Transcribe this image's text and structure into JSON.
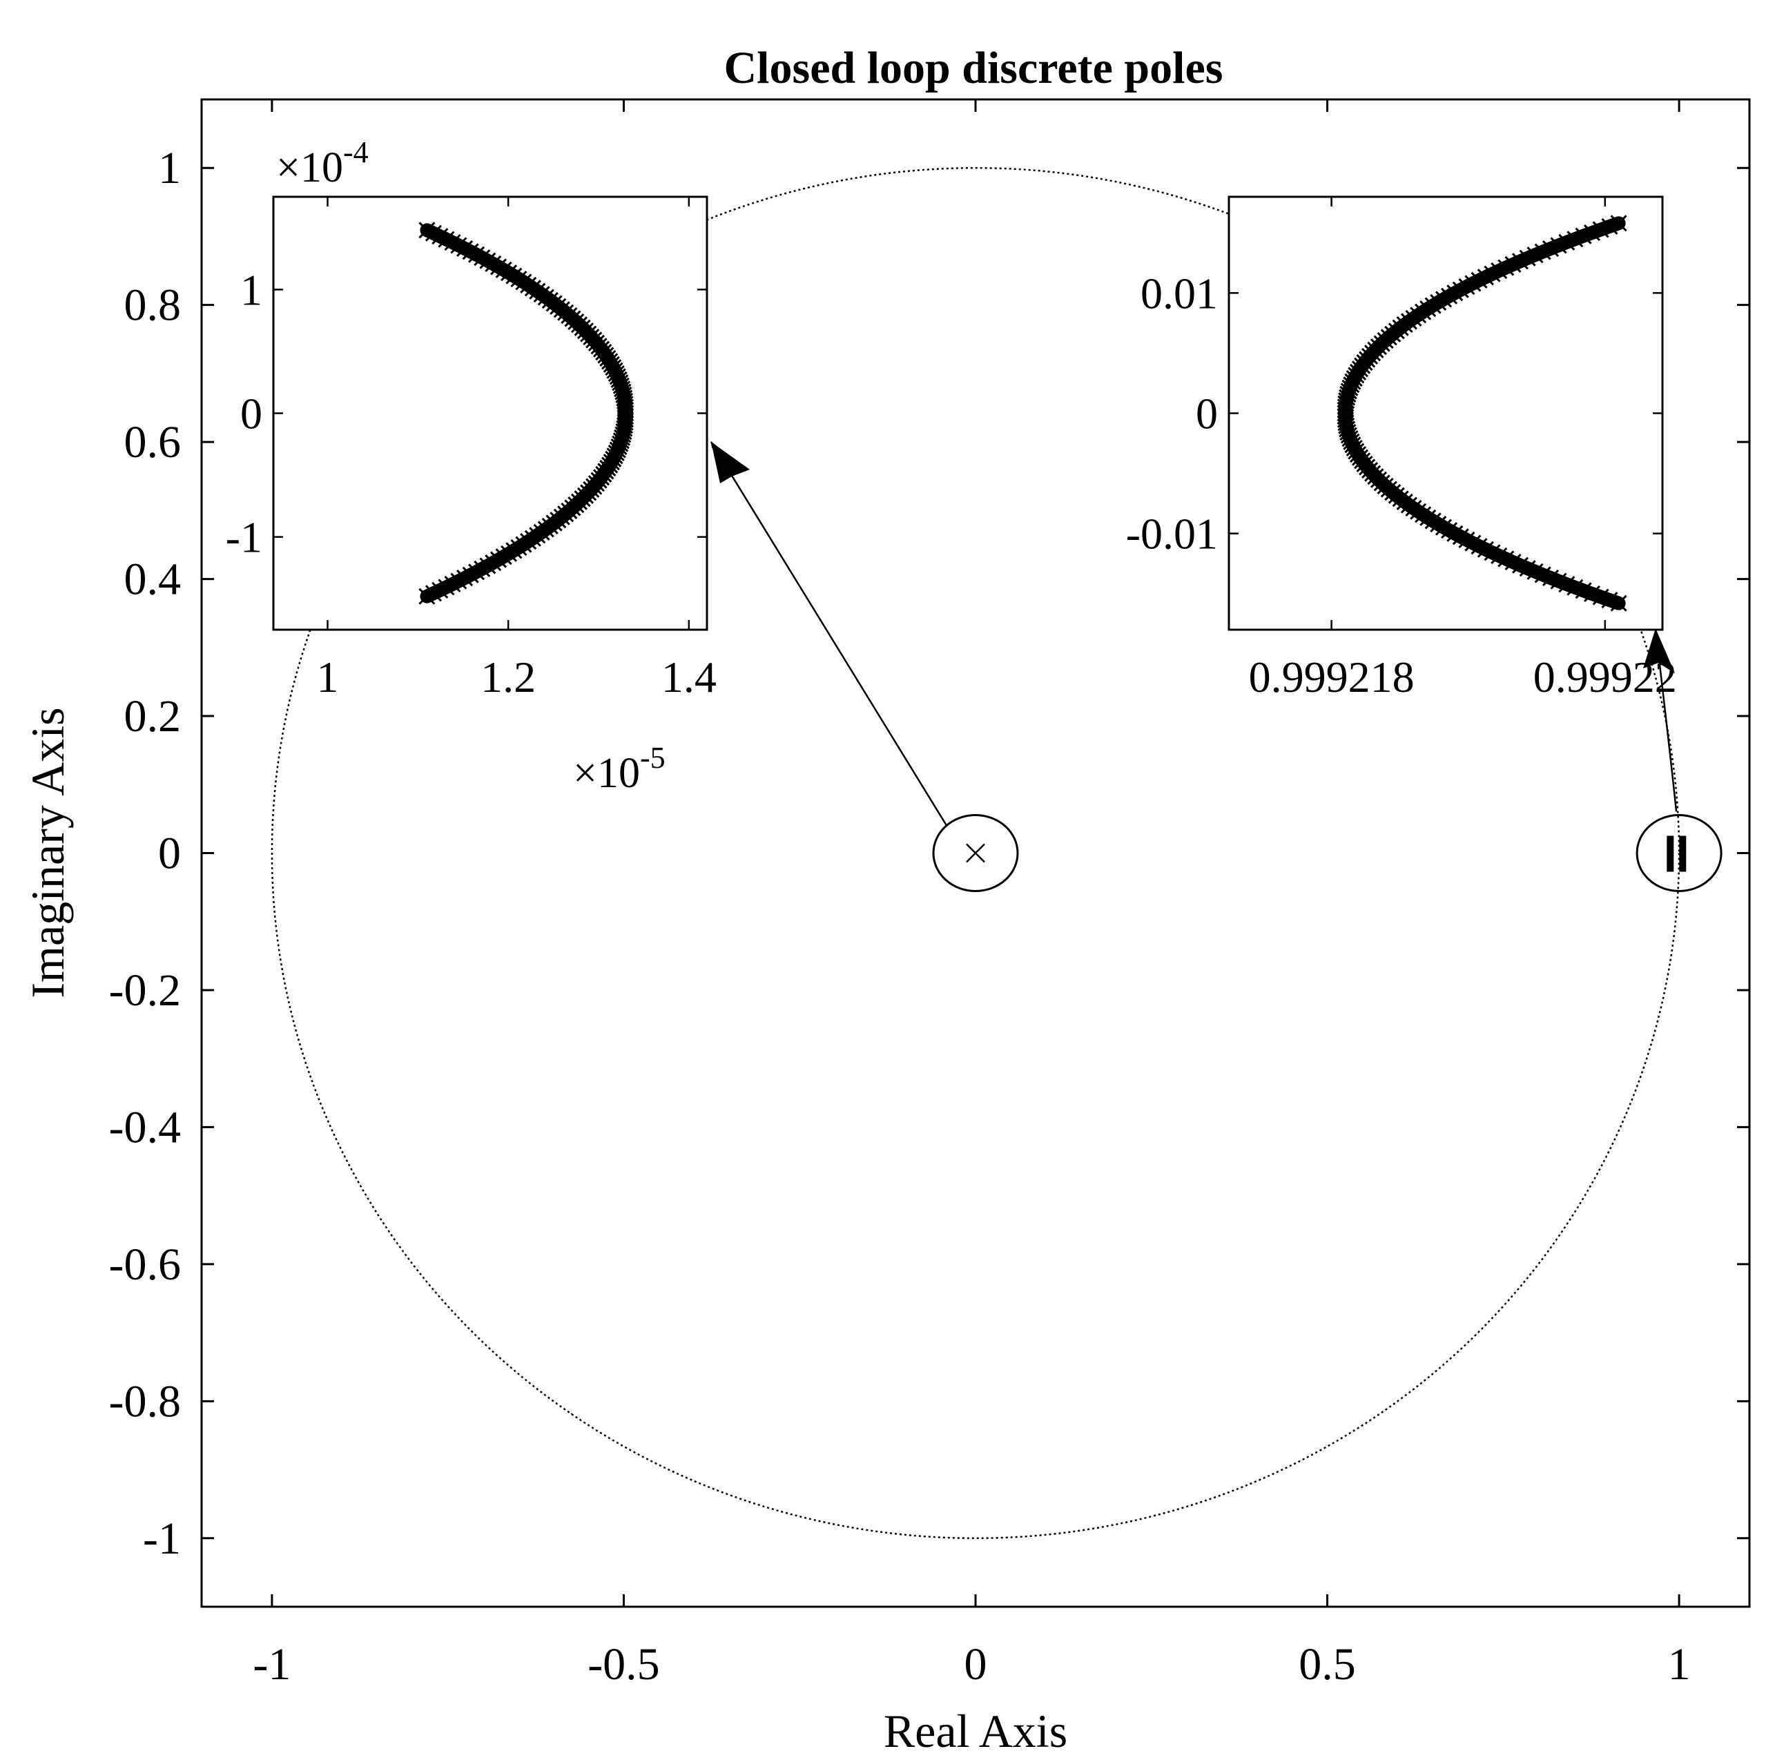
{
  "chart_data": [
    {
      "id": "main",
      "type": "scatter",
      "title": "Closed loop discrete poles",
      "xlabel": "Real Axis",
      "ylabel": "Imaginary Axis",
      "xlim": [
        -1.1,
        1.1
      ],
      "ylim": [
        -1.1,
        1.1
      ],
      "xticks": [
        -1,
        -0.5,
        0,
        0.5,
        1
      ],
      "xtick_labels": [
        "-1",
        "-0.5",
        "0",
        "0.5",
        "1"
      ],
      "yticks": [
        1,
        0.8,
        0.6,
        0.4,
        0.2,
        0,
        -0.2,
        -0.4,
        -0.6,
        -0.8,
        -1
      ],
      "ytick_labels": [
        "1",
        "0.8",
        "0.6",
        "0.4",
        "0.2",
        "0",
        "-0.2",
        "-0.4",
        "-0.6",
        "-0.8",
        "-1"
      ],
      "grid": false,
      "unit_circle": {
        "center": [
          0,
          0
        ],
        "radius": 1,
        "style": "dotted"
      },
      "pole_clusters": [
        {
          "name": "",
          "x": 0,
          "y": 0,
          "marker": "x"
        },
        {
          "name": "",
          "x": 0.99922,
          "y": 0,
          "marker": "x"
        }
      ],
      "highlight_ellipses": [
        {
          "center": [
            0,
            0
          ]
        },
        {
          "center": [
            1,
            0
          ]
        }
      ]
    },
    {
      "id": "inset-left",
      "type": "scatter",
      "xlim": [
        0.94,
        1.42
      ],
      "ylim": [
        -1.75,
        1.75
      ],
      "xticks": [
        1,
        1.2,
        1.4
      ],
      "xtick_labels": [
        "1",
        "1.2",
        "1.4"
      ],
      "x_multiplier": "×10",
      "x_exponent": "-5",
      "yticks": [
        1,
        0,
        -1
      ],
      "ytick_labels": [
        "1",
        "0",
        "-1"
      ],
      "y_multiplier": "×10",
      "y_exponent": "-4",
      "curve": {
        "vertex": [
          1.33,
          0
        ],
        "end_top": [
          1.11,
          1.48
        ],
        "end_bottom": [
          1.11,
          -1.48
        ],
        "marker": "x"
      },
      "annotation_arrow": {
        "from": [
          0,
          0
        ],
        "to_edge": "right"
      }
    },
    {
      "id": "inset-right",
      "type": "scatter",
      "xlim": [
        0.99921725,
        0.99922042
      ],
      "ylim": [
        -0.018,
        0.018
      ],
      "xticks": [
        0.999218,
        0.99922
      ],
      "xtick_labels": [
        "0.999218",
        "0.99922"
      ],
      "yticks": [
        0.01,
        0,
        -0.01
      ],
      "ytick_labels": [
        "0.01",
        "0",
        "-0.01"
      ],
      "curve": {
        "vertex": [
          0.9992181,
          0
        ],
        "end_top": [
          0.9992201,
          0.0158
        ],
        "end_bottom": [
          0.9992201,
          -0.0158
        ],
        "marker": "x"
      },
      "annotation_arrow": {
        "from": [
          1,
          0
        ],
        "to_edge": "bottom-right"
      }
    }
  ]
}
